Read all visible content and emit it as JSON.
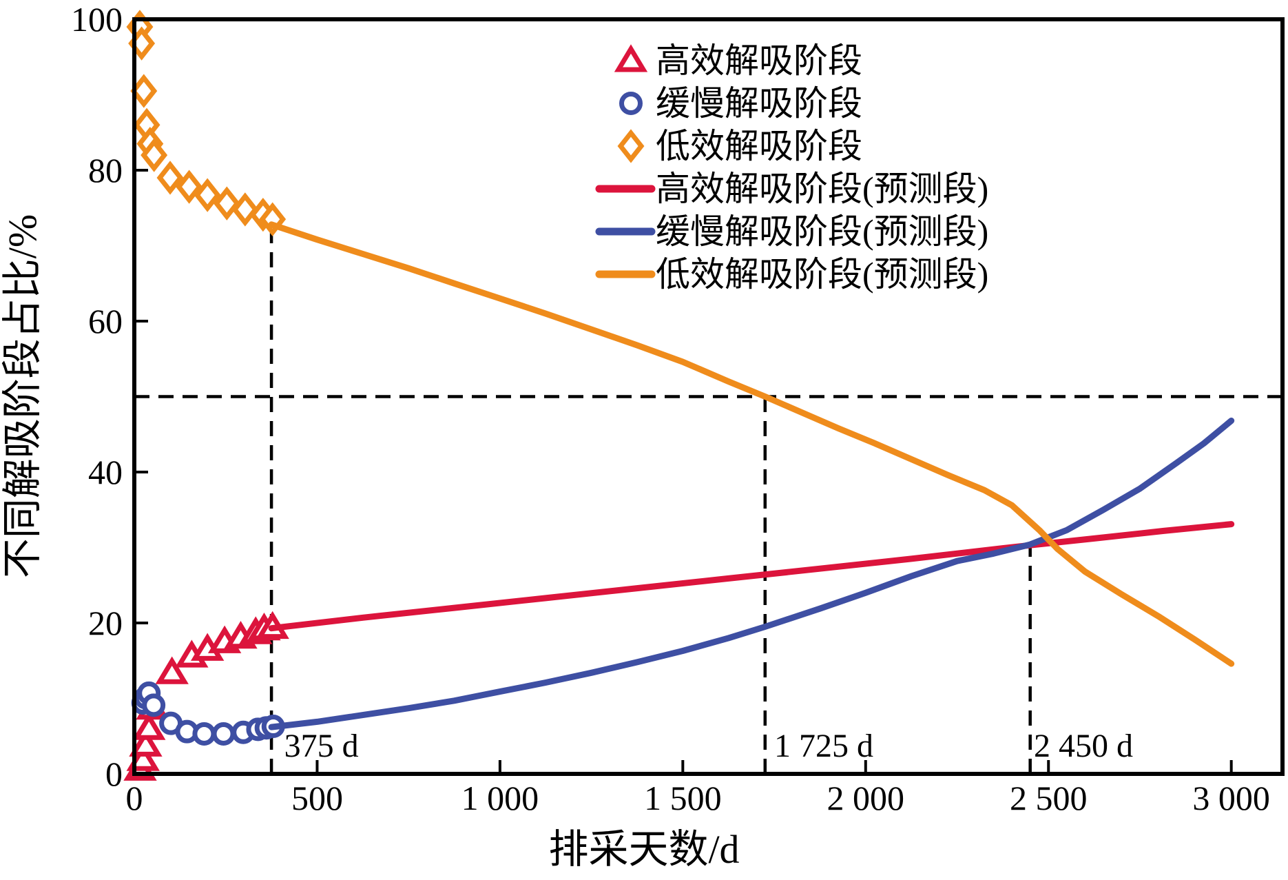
{
  "figure": {
    "xlabel": "排采天数/d",
    "ylabel": "不同解吸阶段占比/%"
  },
  "chart_data": {
    "type": "scatter",
    "title": "",
    "xlabel": "排采天数/d",
    "ylabel": "不同解吸阶段占比/%",
    "xlim": [
      0,
      3140
    ],
    "ylim": [
      0,
      100
    ],
    "grid": false,
    "legend_position": "upper right",
    "x_ticks": [
      {
        "value": 0,
        "label": "0"
      },
      {
        "value": 500,
        "label": "500"
      },
      {
        "value": 1000,
        "label": "1 000"
      },
      {
        "value": 1500,
        "label": "1 500"
      },
      {
        "value": 2000,
        "label": "2 000"
      },
      {
        "value": 2500,
        "label": "2 500"
      },
      {
        "value": 3000,
        "label": "3 000"
      }
    ],
    "y_ticks": [
      {
        "value": 0,
        "label": "0"
      },
      {
        "value": 20,
        "label": "20"
      },
      {
        "value": 40,
        "label": "40"
      },
      {
        "value": 60,
        "label": "60"
      },
      {
        "value": 80,
        "label": "80"
      },
      {
        "value": 100,
        "label": "100"
      }
    ],
    "colors": {
      "high_efficiency": "#DC143C",
      "slow": "#3E4FA3",
      "low_efficiency": "#EF8C1C",
      "axis": "#000000"
    },
    "series": [
      {
        "name": "高效解吸阶段",
        "type": "scatter",
        "marker": "triangle",
        "color": "#DC143C",
        "points": [
          [
            16,
            0.6
          ],
          [
            24,
            1.9
          ],
          [
            31,
            3.8
          ],
          [
            40,
            6.0
          ],
          [
            50,
            8.7
          ],
          [
            103,
            13.4
          ],
          [
            157,
            15.6
          ],
          [
            200,
            16.5
          ],
          [
            247,
            17.5
          ],
          [
            291,
            18.1
          ],
          [
            332,
            18.7
          ],
          [
            355,
            19.2
          ],
          [
            378,
            19.4
          ]
        ]
      },
      {
        "name": "缓慢解吸阶段",
        "type": "scatter",
        "marker": "circle",
        "color": "#3E4FA3",
        "points": [
          [
            24,
            9.4
          ],
          [
            31,
            10.1
          ],
          [
            40,
            10.7
          ],
          [
            53,
            9.1
          ],
          [
            100,
            6.7
          ],
          [
            144,
            5.6
          ],
          [
            191,
            5.3
          ],
          [
            244,
            5.3
          ],
          [
            298,
            5.5
          ],
          [
            338,
            5.9
          ],
          [
            361,
            6.1
          ],
          [
            380,
            6.3
          ]
        ]
      },
      {
        "name": "低效解吸阶段",
        "type": "scatter",
        "marker": "diamond",
        "color": "#EF8C1C",
        "points": [
          [
            15,
            99.0
          ],
          [
            20,
            96.8
          ],
          [
            26,
            90.5
          ],
          [
            34,
            86.0
          ],
          [
            43,
            83.5
          ],
          [
            54,
            82.0
          ],
          [
            98,
            79.0
          ],
          [
            150,
            77.8
          ],
          [
            200,
            76.7
          ],
          [
            253,
            75.6
          ],
          [
            303,
            74.8
          ],
          [
            352,
            74.1
          ],
          [
            378,
            73.5
          ]
        ]
      },
      {
        "name": "高效解吸阶段(预测段)",
        "type": "line",
        "color": "#DC143C",
        "points": [
          [
            375,
            19.3
          ],
          [
            625,
            20.7
          ],
          [
            875,
            22.0
          ],
          [
            1125,
            23.3
          ],
          [
            1375,
            24.6
          ],
          [
            1625,
            25.9
          ],
          [
            1875,
            27.2
          ],
          [
            2125,
            28.5
          ],
          [
            2375,
            29.9
          ],
          [
            2450,
            30.3
          ],
          [
            2625,
            31.2
          ],
          [
            2815,
            32.2
          ],
          [
            3000,
            33.1
          ]
        ]
      },
      {
        "name": "缓慢解吸阶段(预测段)",
        "type": "line",
        "color": "#3E4FA3",
        "points": [
          [
            375,
            6.2
          ],
          [
            500,
            6.9
          ],
          [
            625,
            7.8
          ],
          [
            750,
            8.7
          ],
          [
            875,
            9.7
          ],
          [
            1000,
            10.9
          ],
          [
            1125,
            12.1
          ],
          [
            1250,
            13.4
          ],
          [
            1375,
            14.8
          ],
          [
            1500,
            16.3
          ],
          [
            1625,
            18.0
          ],
          [
            1725,
            19.5
          ],
          [
            1875,
            21.9
          ],
          [
            2000,
            24.0
          ],
          [
            2125,
            26.2
          ],
          [
            2250,
            28.2
          ],
          [
            2350,
            29.2
          ],
          [
            2450,
            30.4
          ],
          [
            2550,
            32.3
          ],
          [
            2650,
            35.0
          ],
          [
            2750,
            37.8
          ],
          [
            2850,
            41.2
          ],
          [
            2925,
            43.8
          ],
          [
            3000,
            46.8
          ]
        ]
      },
      {
        "name": "低效解吸阶段(预测段)",
        "type": "line",
        "color": "#EF8C1C",
        "points": [
          [
            375,
            72.8
          ],
          [
            500,
            70.8
          ],
          [
            625,
            68.9
          ],
          [
            750,
            67.0
          ],
          [
            875,
            65.0
          ],
          [
            1000,
            63.0
          ],
          [
            1125,
            61.0
          ],
          [
            1250,
            58.9
          ],
          [
            1375,
            56.8
          ],
          [
            1500,
            54.6
          ],
          [
            1625,
            52.0
          ],
          [
            1725,
            50.0
          ],
          [
            1825,
            47.9
          ],
          [
            1925,
            45.8
          ],
          [
            2025,
            43.8
          ],
          [
            2125,
            41.7
          ],
          [
            2225,
            39.6
          ],
          [
            2325,
            37.6
          ],
          [
            2400,
            35.6
          ],
          [
            2475,
            32.3
          ],
          [
            2525,
            29.8
          ],
          [
            2600,
            26.8
          ],
          [
            2700,
            23.8
          ],
          [
            2800,
            20.9
          ],
          [
            2900,
            17.8
          ],
          [
            3000,
            14.6
          ]
        ]
      }
    ],
    "reference_lines": {
      "horizontal": [
        {
          "y": 50,
          "from_x": 0,
          "to_x": 3140,
          "style": "dashed"
        }
      ],
      "vertical": [
        {
          "x": 375,
          "from_y": 0,
          "to_y": 72.5,
          "style": "dashed"
        },
        {
          "x": 1725,
          "from_y": 0,
          "to_y": 50.0,
          "style": "dashed"
        },
        {
          "x": 2450,
          "from_y": 0,
          "to_y": 31.5,
          "style": "dashed"
        }
      ]
    },
    "annotations": [
      {
        "text": "375 d",
        "x": 410,
        "y": 2.3,
        "anchor": "start"
      },
      {
        "text": "1 725 d",
        "x": 1750,
        "y": 2.3,
        "anchor": "start"
      },
      {
        "text": "2 450 d",
        "x": 2460,
        "y": 2.3,
        "anchor": "start"
      }
    ],
    "legend": [
      {
        "symbol": "triangle",
        "color": "#DC143C",
        "label": "高效解吸阶段"
      },
      {
        "symbol": "circle",
        "color": "#3E4FA3",
        "label": "缓慢解吸阶段"
      },
      {
        "symbol": "diamond",
        "color": "#EF8C1C",
        "label": "低效解吸阶段"
      },
      {
        "symbol": "line",
        "color": "#DC143C",
        "label": "高效解吸阶段(预测段)"
      },
      {
        "symbol": "line",
        "color": "#3E4FA3",
        "label": "缓慢解吸阶段(预测段)"
      },
      {
        "symbol": "line",
        "color": "#EF8C1C",
        "label": "低效解吸阶段(预测段)"
      }
    ]
  }
}
